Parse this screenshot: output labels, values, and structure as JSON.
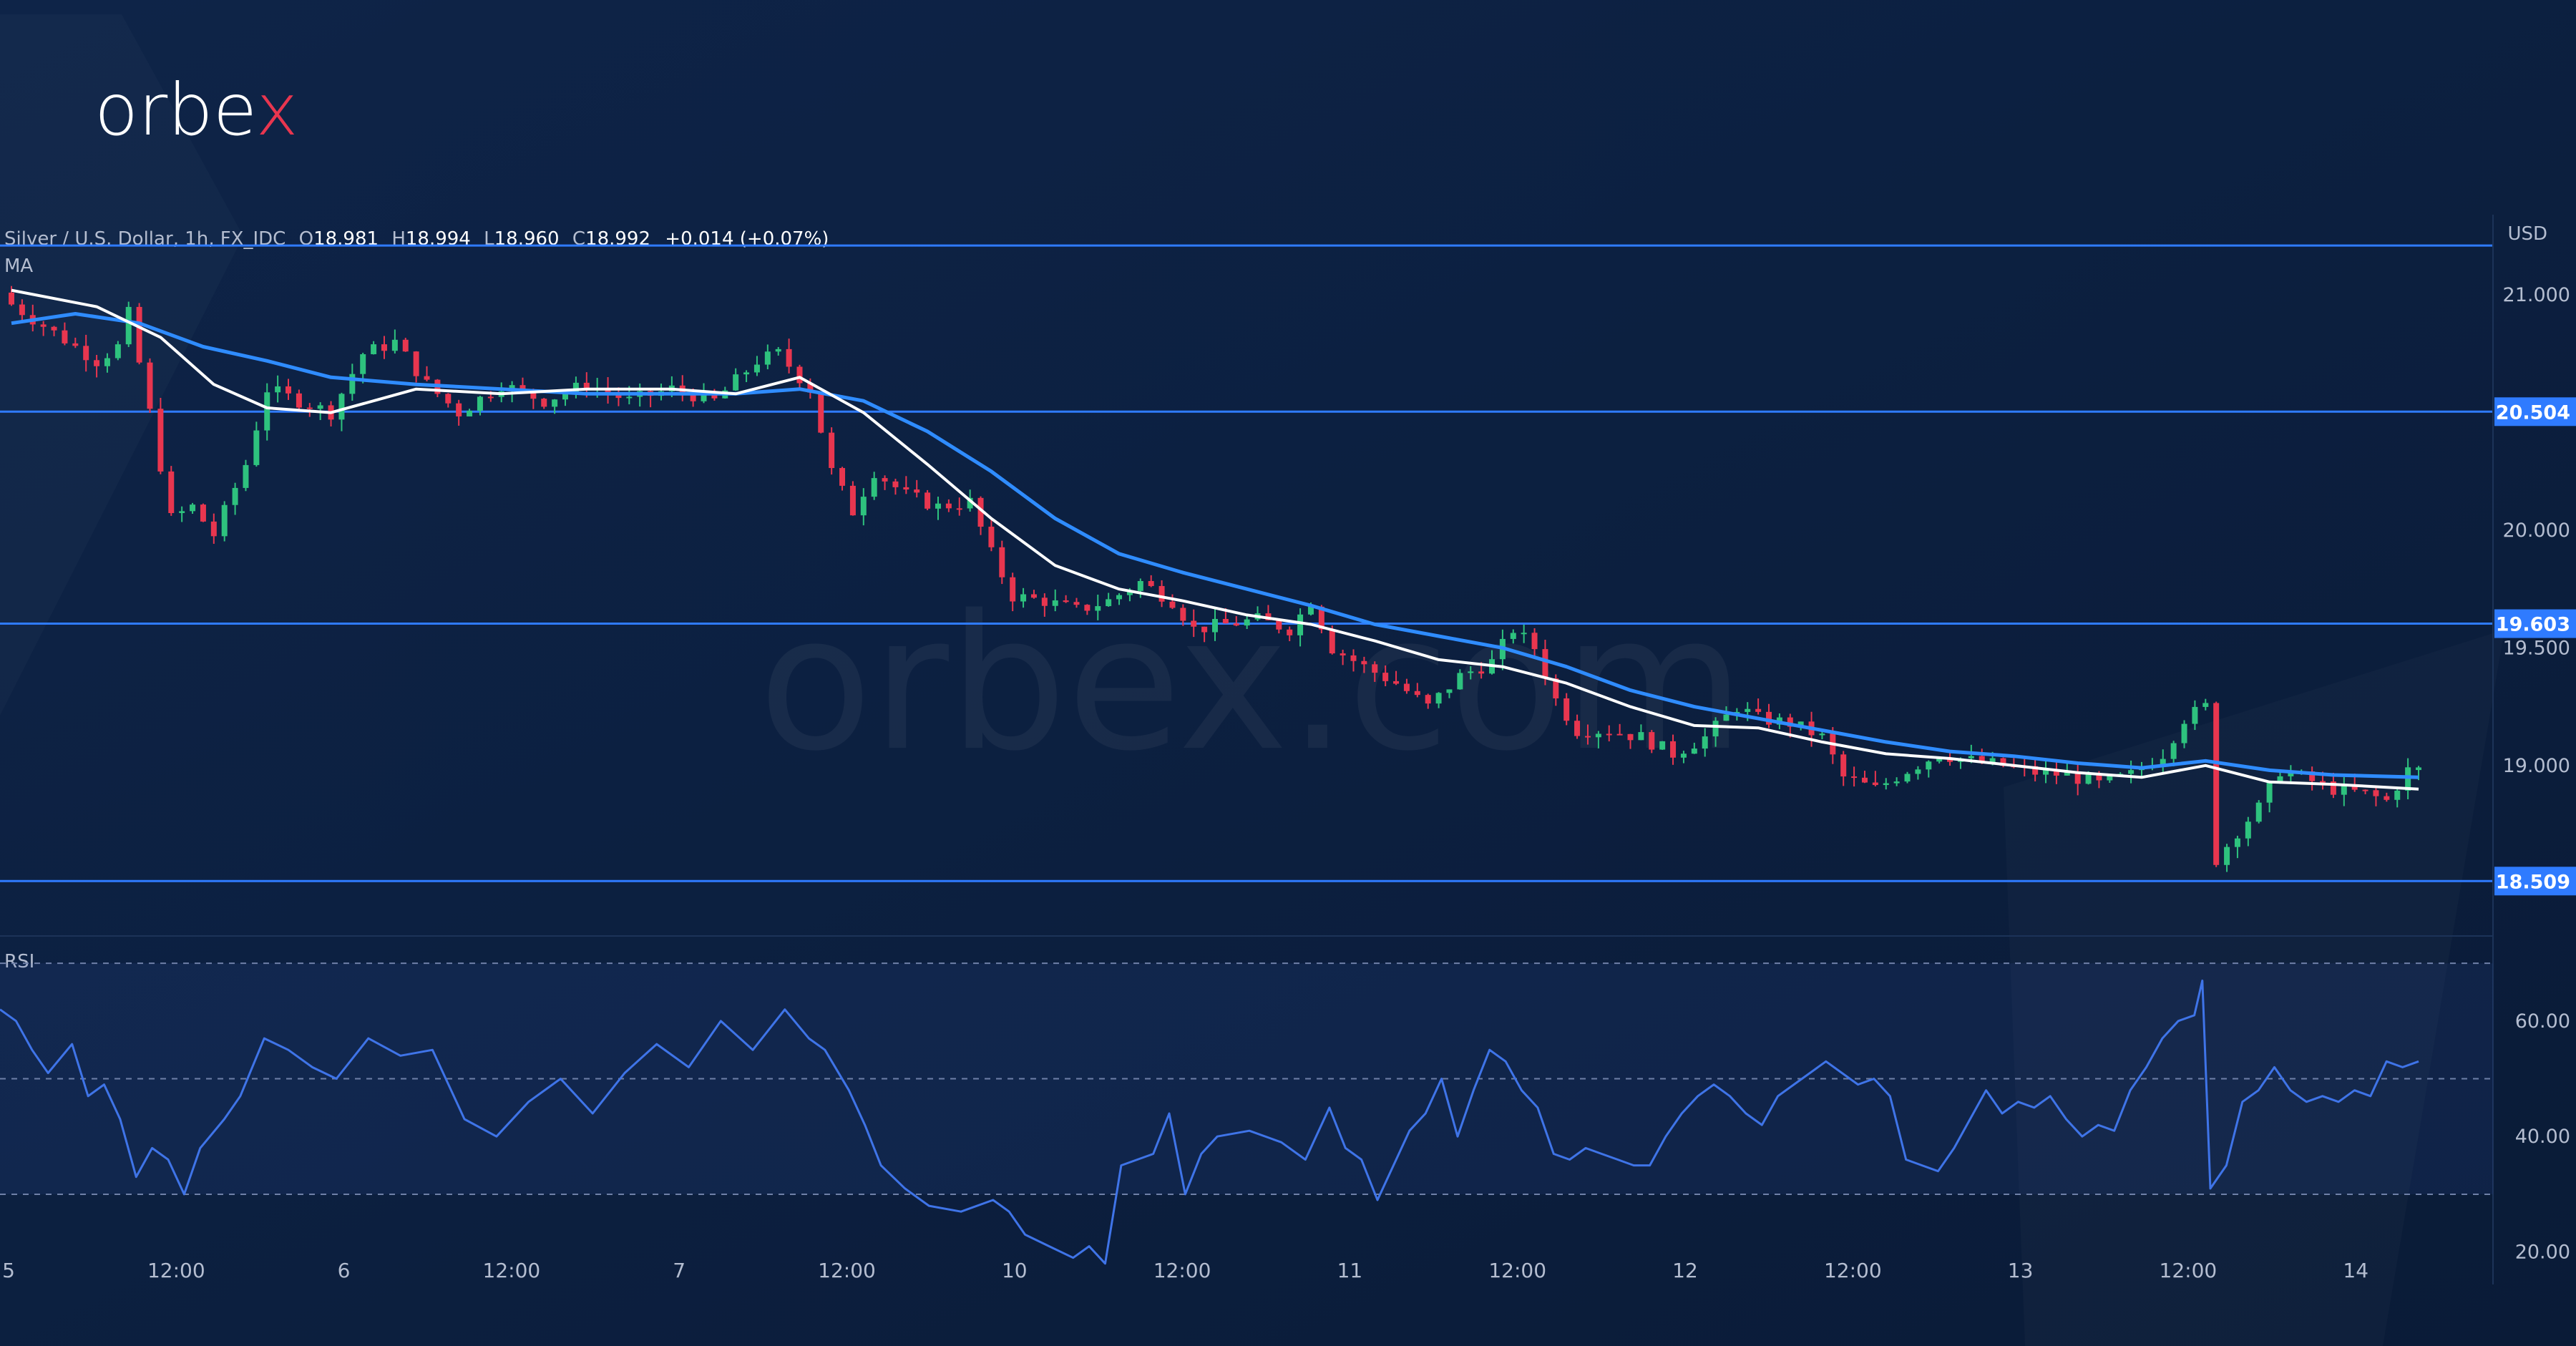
{
  "brand": {
    "logo_text_main": "orbe",
    "logo_text_x": "x",
    "watermark": "orbex.com"
  },
  "header": {
    "symbol": "Silver / U.S. Dollar, 1h, FX_IDC",
    "o_label": "O",
    "o_value": "18.981",
    "h_label": "H",
    "h_value": "18.994",
    "l_label": "L",
    "l_value": "18.960",
    "c_label": "C",
    "c_value": "18.992",
    "change": "+0.014 (+0.07%)",
    "ma_label": "MA",
    "rsi_label": "RSI"
  },
  "colors": {
    "background": "#0b1d3a",
    "up": "#26a69a",
    "up_candle": "#2ec27e",
    "down": "#e8364f",
    "ma_fast": "#ffffff",
    "ma_slow": "#2f8cff",
    "level_line": "#2f7bff",
    "rsi_line": "#3f74e8"
  },
  "chart_data": [
    {
      "type": "candlestick",
      "title": "Silver / U.S. Dollar, 1h, FX_IDC",
      "currency": "USD",
      "y_axis_unit": "USD",
      "ylim": [
        18.3,
        21.25
      ],
      "y_ticks": [
        "21.000",
        "20.000",
        "19.500",
        "19.000"
      ],
      "x_ticks": [
        "5",
        "12:00",
        "6",
        "12:00",
        "7",
        "12:00",
        "10",
        "12:00",
        "11",
        "12:00",
        "12",
        "12:00",
        "13",
        "12:00",
        "14"
      ],
      "levels": [
        {
          "label": "20.504",
          "value": 20.504
        },
        {
          "label": "19.603",
          "value": 19.603
        },
        {
          "label": "18.509",
          "value": 18.509
        },
        {
          "label": "",
          "value": 21.21
        }
      ],
      "close_path": [
        [
          0,
          20.96
        ],
        [
          8,
          20.72
        ],
        [
          10,
          20.78
        ],
        [
          11,
          20.92
        ],
        [
          13,
          20.5
        ],
        [
          15,
          20.05
        ],
        [
          17,
          20.1
        ],
        [
          19,
          19.98
        ],
        [
          22,
          20.28
        ],
        [
          24,
          20.6
        ],
        [
          27,
          20.55
        ],
        [
          30,
          20.5
        ],
        [
          33,
          20.75
        ],
        [
          36,
          20.8
        ],
        [
          39,
          20.62
        ],
        [
          42,
          20.5
        ],
        [
          46,
          20.62
        ],
        [
          50,
          20.55
        ],
        [
          54,
          20.62
        ],
        [
          58,
          20.55
        ],
        [
          62,
          20.6
        ],
        [
          66,
          20.55
        ],
        [
          70,
          20.72
        ],
        [
          72,
          20.75
        ],
        [
          75,
          20.6
        ],
        [
          77,
          20.25
        ],
        [
          79,
          20.08
        ],
        [
          81,
          20.25
        ],
        [
          84,
          20.15
        ],
        [
          87,
          20.1
        ],
        [
          90,
          20.12
        ],
        [
          92,
          19.9
        ],
        [
          94,
          19.72
        ],
        [
          97,
          19.7
        ],
        [
          100,
          19.66
        ],
        [
          103,
          19.7
        ],
        [
          106,
          19.78
        ],
        [
          109,
          19.7
        ],
        [
          111,
          19.58
        ],
        [
          114,
          19.6
        ],
        [
          117,
          19.62
        ],
        [
          120,
          19.58
        ],
        [
          122,
          19.7
        ],
        [
          124,
          19.5
        ],
        [
          127,
          19.42
        ],
        [
          130,
          19.35
        ],
        [
          133,
          19.25
        ],
        [
          136,
          19.38
        ],
        [
          139,
          19.44
        ],
        [
          141,
          19.58
        ],
        [
          143,
          19.5
        ],
        [
          145,
          19.28
        ],
        [
          147,
          19.15
        ],
        [
          150,
          19.15
        ],
        [
          153,
          19.12
        ],
        [
          156,
          19.05
        ],
        [
          159,
          19.12
        ],
        [
          162,
          19.25
        ],
        [
          164,
          19.2
        ],
        [
          167,
          19.18
        ],
        [
          170,
          19.12
        ],
        [
          172,
          18.95
        ],
        [
          175,
          18.9
        ],
        [
          178,
          18.98
        ],
        [
          181,
          19.05
        ],
        [
          184,
          19.02
        ],
        [
          187,
          19.0
        ],
        [
          190,
          18.97
        ],
        [
          193,
          18.96
        ],
        [
          196,
          18.92
        ],
        [
          199,
          18.96
        ],
        [
          202,
          19.05
        ],
        [
          204,
          19.2
        ],
        [
          206,
          19.25
        ],
        [
          207,
          18.6
        ],
        [
          209,
          18.72
        ],
        [
          211,
          18.82
        ],
        [
          213,
          18.98
        ],
        [
          215,
          18.95
        ],
        [
          218,
          18.9
        ],
        [
          221,
          18.88
        ],
        [
          223,
          18.85
        ],
        [
          225,
          18.98
        ],
        [
          226,
          18.992
        ]
      ],
      "ma_fast_path": [
        [
          0,
          21.02
        ],
        [
          8,
          20.95
        ],
        [
          14,
          20.82
        ],
        [
          19,
          20.62
        ],
        [
          24,
          20.52
        ],
        [
          30,
          20.5
        ],
        [
          38,
          20.6
        ],
        [
          46,
          20.58
        ],
        [
          54,
          20.6
        ],
        [
          62,
          20.6
        ],
        [
          68,
          20.58
        ],
        [
          74,
          20.65
        ],
        [
          80,
          20.5
        ],
        [
          86,
          20.28
        ],
        [
          92,
          20.05
        ],
        [
          98,
          19.85
        ],
        [
          104,
          19.75
        ],
        [
          110,
          19.7
        ],
        [
          116,
          19.64
        ],
        [
          122,
          19.6
        ],
        [
          128,
          19.53
        ],
        [
          134,
          19.45
        ],
        [
          140,
          19.42
        ],
        [
          146,
          19.35
        ],
        [
          152,
          19.25
        ],
        [
          158,
          19.17
        ],
        [
          164,
          19.16
        ],
        [
          170,
          19.1
        ],
        [
          176,
          19.05
        ],
        [
          182,
          19.03
        ],
        [
          188,
          19.0
        ],
        [
          194,
          18.97
        ],
        [
          200,
          18.95
        ],
        [
          206,
          19.0
        ],
        [
          212,
          18.93
        ],
        [
          218,
          18.92
        ],
        [
          226,
          18.9
        ]
      ],
      "ma_slow_path": [
        [
          0,
          20.88
        ],
        [
          6,
          20.92
        ],
        [
          12,
          20.88
        ],
        [
          18,
          20.78
        ],
        [
          24,
          20.72
        ],
        [
          30,
          20.65
        ],
        [
          38,
          20.62
        ],
        [
          46,
          20.6
        ],
        [
          54,
          20.58
        ],
        [
          62,
          20.58
        ],
        [
          68,
          20.58
        ],
        [
          74,
          20.6
        ],
        [
          80,
          20.55
        ],
        [
          86,
          20.42
        ],
        [
          92,
          20.25
        ],
        [
          98,
          20.05
        ],
        [
          104,
          19.9
        ],
        [
          110,
          19.82
        ],
        [
          116,
          19.75
        ],
        [
          122,
          19.68
        ],
        [
          128,
          19.6
        ],
        [
          134,
          19.55
        ],
        [
          140,
          19.5
        ],
        [
          146,
          19.42
        ],
        [
          152,
          19.32
        ],
        [
          158,
          19.25
        ],
        [
          164,
          19.2
        ],
        [
          170,
          19.15
        ],
        [
          176,
          19.1
        ],
        [
          182,
          19.06
        ],
        [
          188,
          19.04
        ],
        [
          194,
          19.01
        ],
        [
          200,
          18.99
        ],
        [
          206,
          19.02
        ],
        [
          212,
          18.98
        ],
        [
          218,
          18.96
        ],
        [
          226,
          18.95
        ]
      ]
    },
    {
      "type": "line",
      "title": "RSI",
      "ylim": [
        15,
        72
      ],
      "y_ticks": [
        "60.00",
        "40.00",
        "20.00"
      ],
      "band": [
        30,
        70
      ],
      "mid_line": 50,
      "points": [
        [
          0,
          62
        ],
        [
          2,
          60
        ],
        [
          4,
          55
        ],
        [
          6,
          51
        ],
        [
          9,
          56
        ],
        [
          11,
          47
        ],
        [
          13,
          49
        ],
        [
          15,
          43
        ],
        [
          17,
          33
        ],
        [
          19,
          38
        ],
        [
          21,
          36
        ],
        [
          23,
          30
        ],
        [
          25,
          38
        ],
        [
          28,
          43
        ],
        [
          30,
          47
        ],
        [
          33,
          57
        ],
        [
          36,
          55
        ],
        [
          39,
          52
        ],
        [
          42,
          50
        ],
        [
          46,
          57
        ],
        [
          50,
          54
        ],
        [
          54,
          55
        ],
        [
          58,
          43
        ],
        [
          62,
          40
        ],
        [
          66,
          46
        ],
        [
          70,
          50
        ],
        [
          74,
          44
        ],
        [
          78,
          51
        ],
        [
          82,
          56
        ],
        [
          86,
          52
        ],
        [
          90,
          60
        ],
        [
          94,
          55
        ],
        [
          98,
          62
        ],
        [
          101,
          57
        ],
        [
          103,
          55
        ],
        [
          106,
          48
        ],
        [
          108,
          42
        ],
        [
          110,
          35
        ],
        [
          113,
          31
        ],
        [
          116,
          28
        ],
        [
          120,
          27
        ],
        [
          124,
          29
        ],
        [
          126,
          27
        ],
        [
          128,
          23
        ],
        [
          131,
          21
        ],
        [
          134,
          19
        ],
        [
          136,
          21
        ],
        [
          138,
          18
        ],
        [
          140,
          35
        ],
        [
          144,
          37
        ],
        [
          146,
          44
        ],
        [
          148,
          30
        ],
        [
          150,
          37
        ],
        [
          152,
          40
        ],
        [
          156,
          41
        ],
        [
          160,
          39
        ],
        [
          163,
          36
        ],
        [
          166,
          45
        ],
        [
          168,
          38
        ],
        [
          170,
          36
        ],
        [
          172,
          29
        ],
        [
          174,
          35
        ],
        [
          176,
          41
        ],
        [
          178,
          44
        ],
        [
          180,
          50
        ],
        [
          182,
          40
        ],
        [
          184,
          48
        ],
        [
          186,
          55
        ],
        [
          188,
          53
        ],
        [
          190,
          48
        ],
        [
          192,
          45
        ],
        [
          194,
          37
        ],
        [
          196,
          36
        ],
        [
          198,
          38
        ],
        [
          200,
          37
        ],
        [
          202,
          36
        ],
        [
          204,
          35
        ],
        [
          206,
          35
        ],
        [
          208,
          40
        ],
        [
          210,
          44
        ],
        [
          212,
          47
        ],
        [
          214,
          49
        ],
        [
          216,
          47
        ],
        [
          218,
          44
        ],
        [
          220,
          42
        ],
        [
          222,
          47
        ],
        [
          224,
          49
        ],
        [
          226,
          51
        ],
        [
          228,
          53
        ],
        [
          230,
          51
        ],
        [
          232,
          49
        ],
        [
          234,
          50
        ],
        [
          236,
          47
        ],
        [
          238,
          36
        ],
        [
          240,
          35
        ],
        [
          242,
          34
        ],
        [
          244,
          38
        ],
        [
          246,
          43
        ],
        [
          248,
          48
        ],
        [
          250,
          44
        ],
        [
          252,
          46
        ],
        [
          254,
          45
        ],
        [
          256,
          47
        ],
        [
          258,
          43
        ],
        [
          260,
          40
        ],
        [
          262,
          42
        ],
        [
          264,
          41
        ],
        [
          266,
          48
        ],
        [
          268,
          52
        ],
        [
          270,
          57
        ],
        [
          272,
          60
        ],
        [
          274,
          61
        ],
        [
          275,
          67
        ],
        [
          276,
          31
        ],
        [
          278,
          35
        ],
        [
          280,
          46
        ],
        [
          282,
          48
        ],
        [
          284,
          52
        ],
        [
          286,
          48
        ],
        [
          288,
          46
        ],
        [
          290,
          47
        ],
        [
          292,
          46
        ],
        [
          294,
          48
        ],
        [
          296,
          47
        ],
        [
          298,
          53
        ],
        [
          300,
          52
        ],
        [
          302,
          53
        ]
      ]
    }
  ]
}
